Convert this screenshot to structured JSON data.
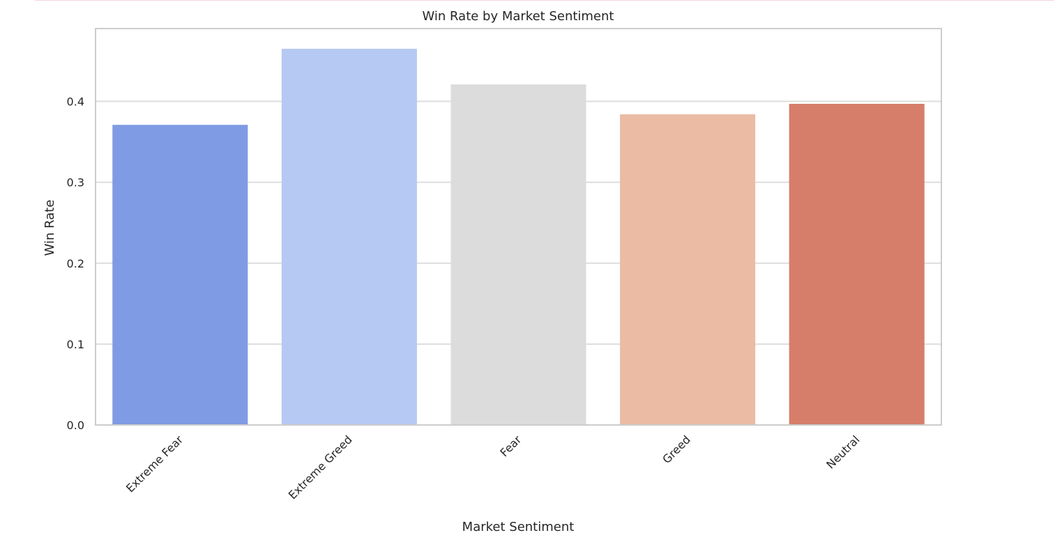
{
  "chart_data": {
    "type": "bar",
    "title": "Win Rate by Market Sentiment",
    "xlabel": "Market Sentiment",
    "ylabel": "Win Rate",
    "categories": [
      "Extreme Fear",
      "Extreme Greed",
      "Fear",
      "Greed",
      "Neutral"
    ],
    "values": [
      0.371,
      0.465,
      0.421,
      0.384,
      0.397
    ],
    "colors": [
      "#7f9be3",
      "#b6c9f3",
      "#dcdcdc",
      "#ebbba4",
      "#d67e6a"
    ],
    "ylim": [
      0,
      0.49
    ],
    "yticks": [
      "0.0",
      "0.1",
      "0.2",
      "0.3",
      "0.4"
    ],
    "ytick_values": [
      0.0,
      0.1,
      0.2,
      0.3,
      0.4
    ],
    "grid": true,
    "x_tick_rotation": "45 degrees"
  }
}
